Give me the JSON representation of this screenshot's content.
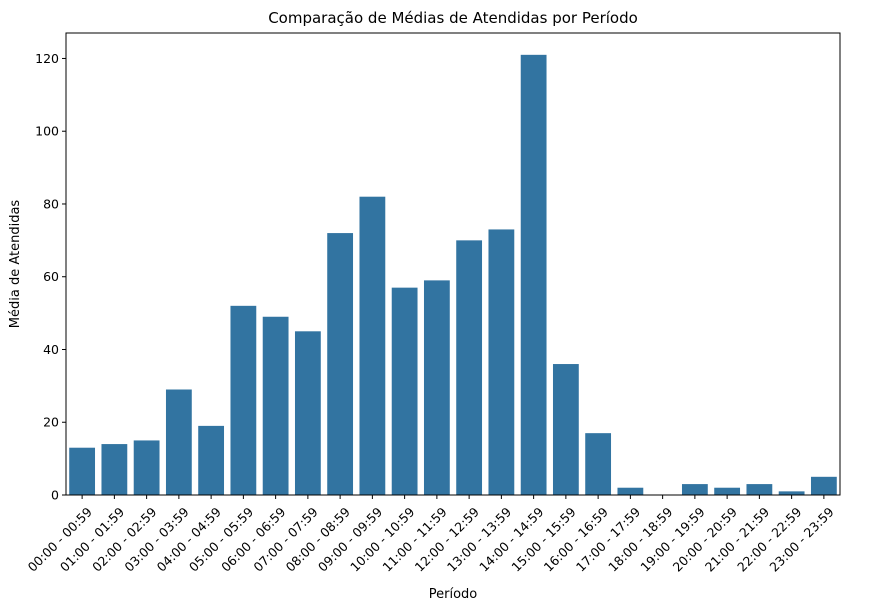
{
  "chart_data": {
    "type": "bar",
    "title": "Comparação de Médias de Atendidas por Período",
    "xlabel": "Período",
    "ylabel": "Média de Atendidas",
    "categories": [
      "00:00 - 00:59",
      "01:00 - 01:59",
      "02:00 - 02:59",
      "03:00 - 03:59",
      "04:00 - 04:59",
      "05:00 - 05:59",
      "06:00 - 06:59",
      "07:00 - 07:59",
      "08:00 - 08:59",
      "09:00 - 09:59",
      "10:00 - 10:59",
      "11:00 - 11:59",
      "12:00 - 12:59",
      "13:00 - 13:59",
      "14:00 - 14:59",
      "15:00 - 15:59",
      "16:00 - 16:59",
      "17:00 - 17:59",
      "18:00 - 18:59",
      "19:00 - 19:59",
      "20:00 - 20:59",
      "21:00 - 21:59",
      "22:00 - 22:59",
      "23:00 - 23:59"
    ],
    "values": [
      13,
      14,
      15,
      29,
      19,
      52,
      49,
      45,
      72,
      82,
      57,
      59,
      70,
      73,
      121,
      36,
      17,
      2,
      0,
      3,
      2,
      3,
      1,
      5
    ],
    "ylim": [
      0,
      127
    ],
    "yticks": [
      "0",
      "20",
      "40",
      "60",
      "80",
      "100",
      "120"
    ],
    "grid": false,
    "bar_color": "#3274a1"
  }
}
